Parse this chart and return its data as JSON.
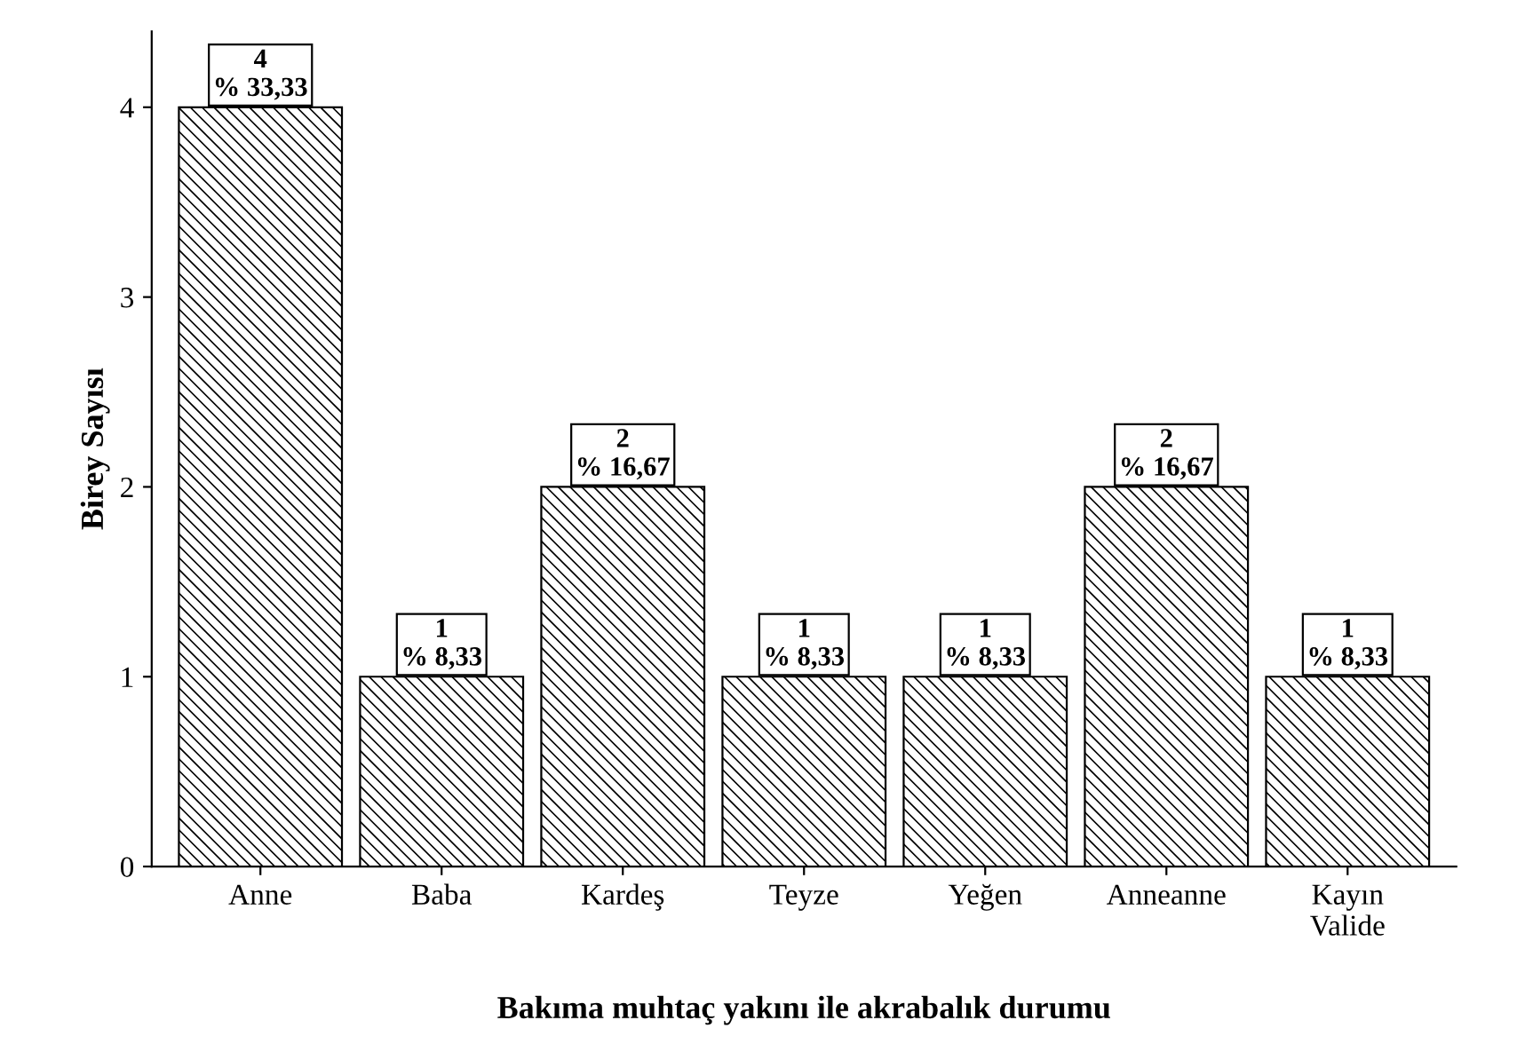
{
  "chart_data": {
    "type": "bar",
    "xlabel": "Bakıma muhtaç yakını ile akrabalık durumu",
    "ylabel": "Birey Sayısı",
    "categories": [
      "Anne",
      "Baba",
      "Kardeş",
      "Teyze",
      "Yeğen",
      "Anneanne",
      "Kayın\nValide"
    ],
    "values": [
      4,
      1,
      2,
      1,
      1,
      2,
      1
    ],
    "value_labels": [
      "4\n% 33,33",
      "1\n% 8,33",
      "2\n% 16,67",
      "1\n% 8,33",
      "1\n% 8,33",
      "2\n% 16,67",
      "1\n% 8,33"
    ],
    "color": "#000000",
    "ylim": [
      0,
      4.4
    ],
    "yticks": [
      0,
      1,
      2,
      3,
      4
    ],
    "grid": false,
    "legend": false
  }
}
